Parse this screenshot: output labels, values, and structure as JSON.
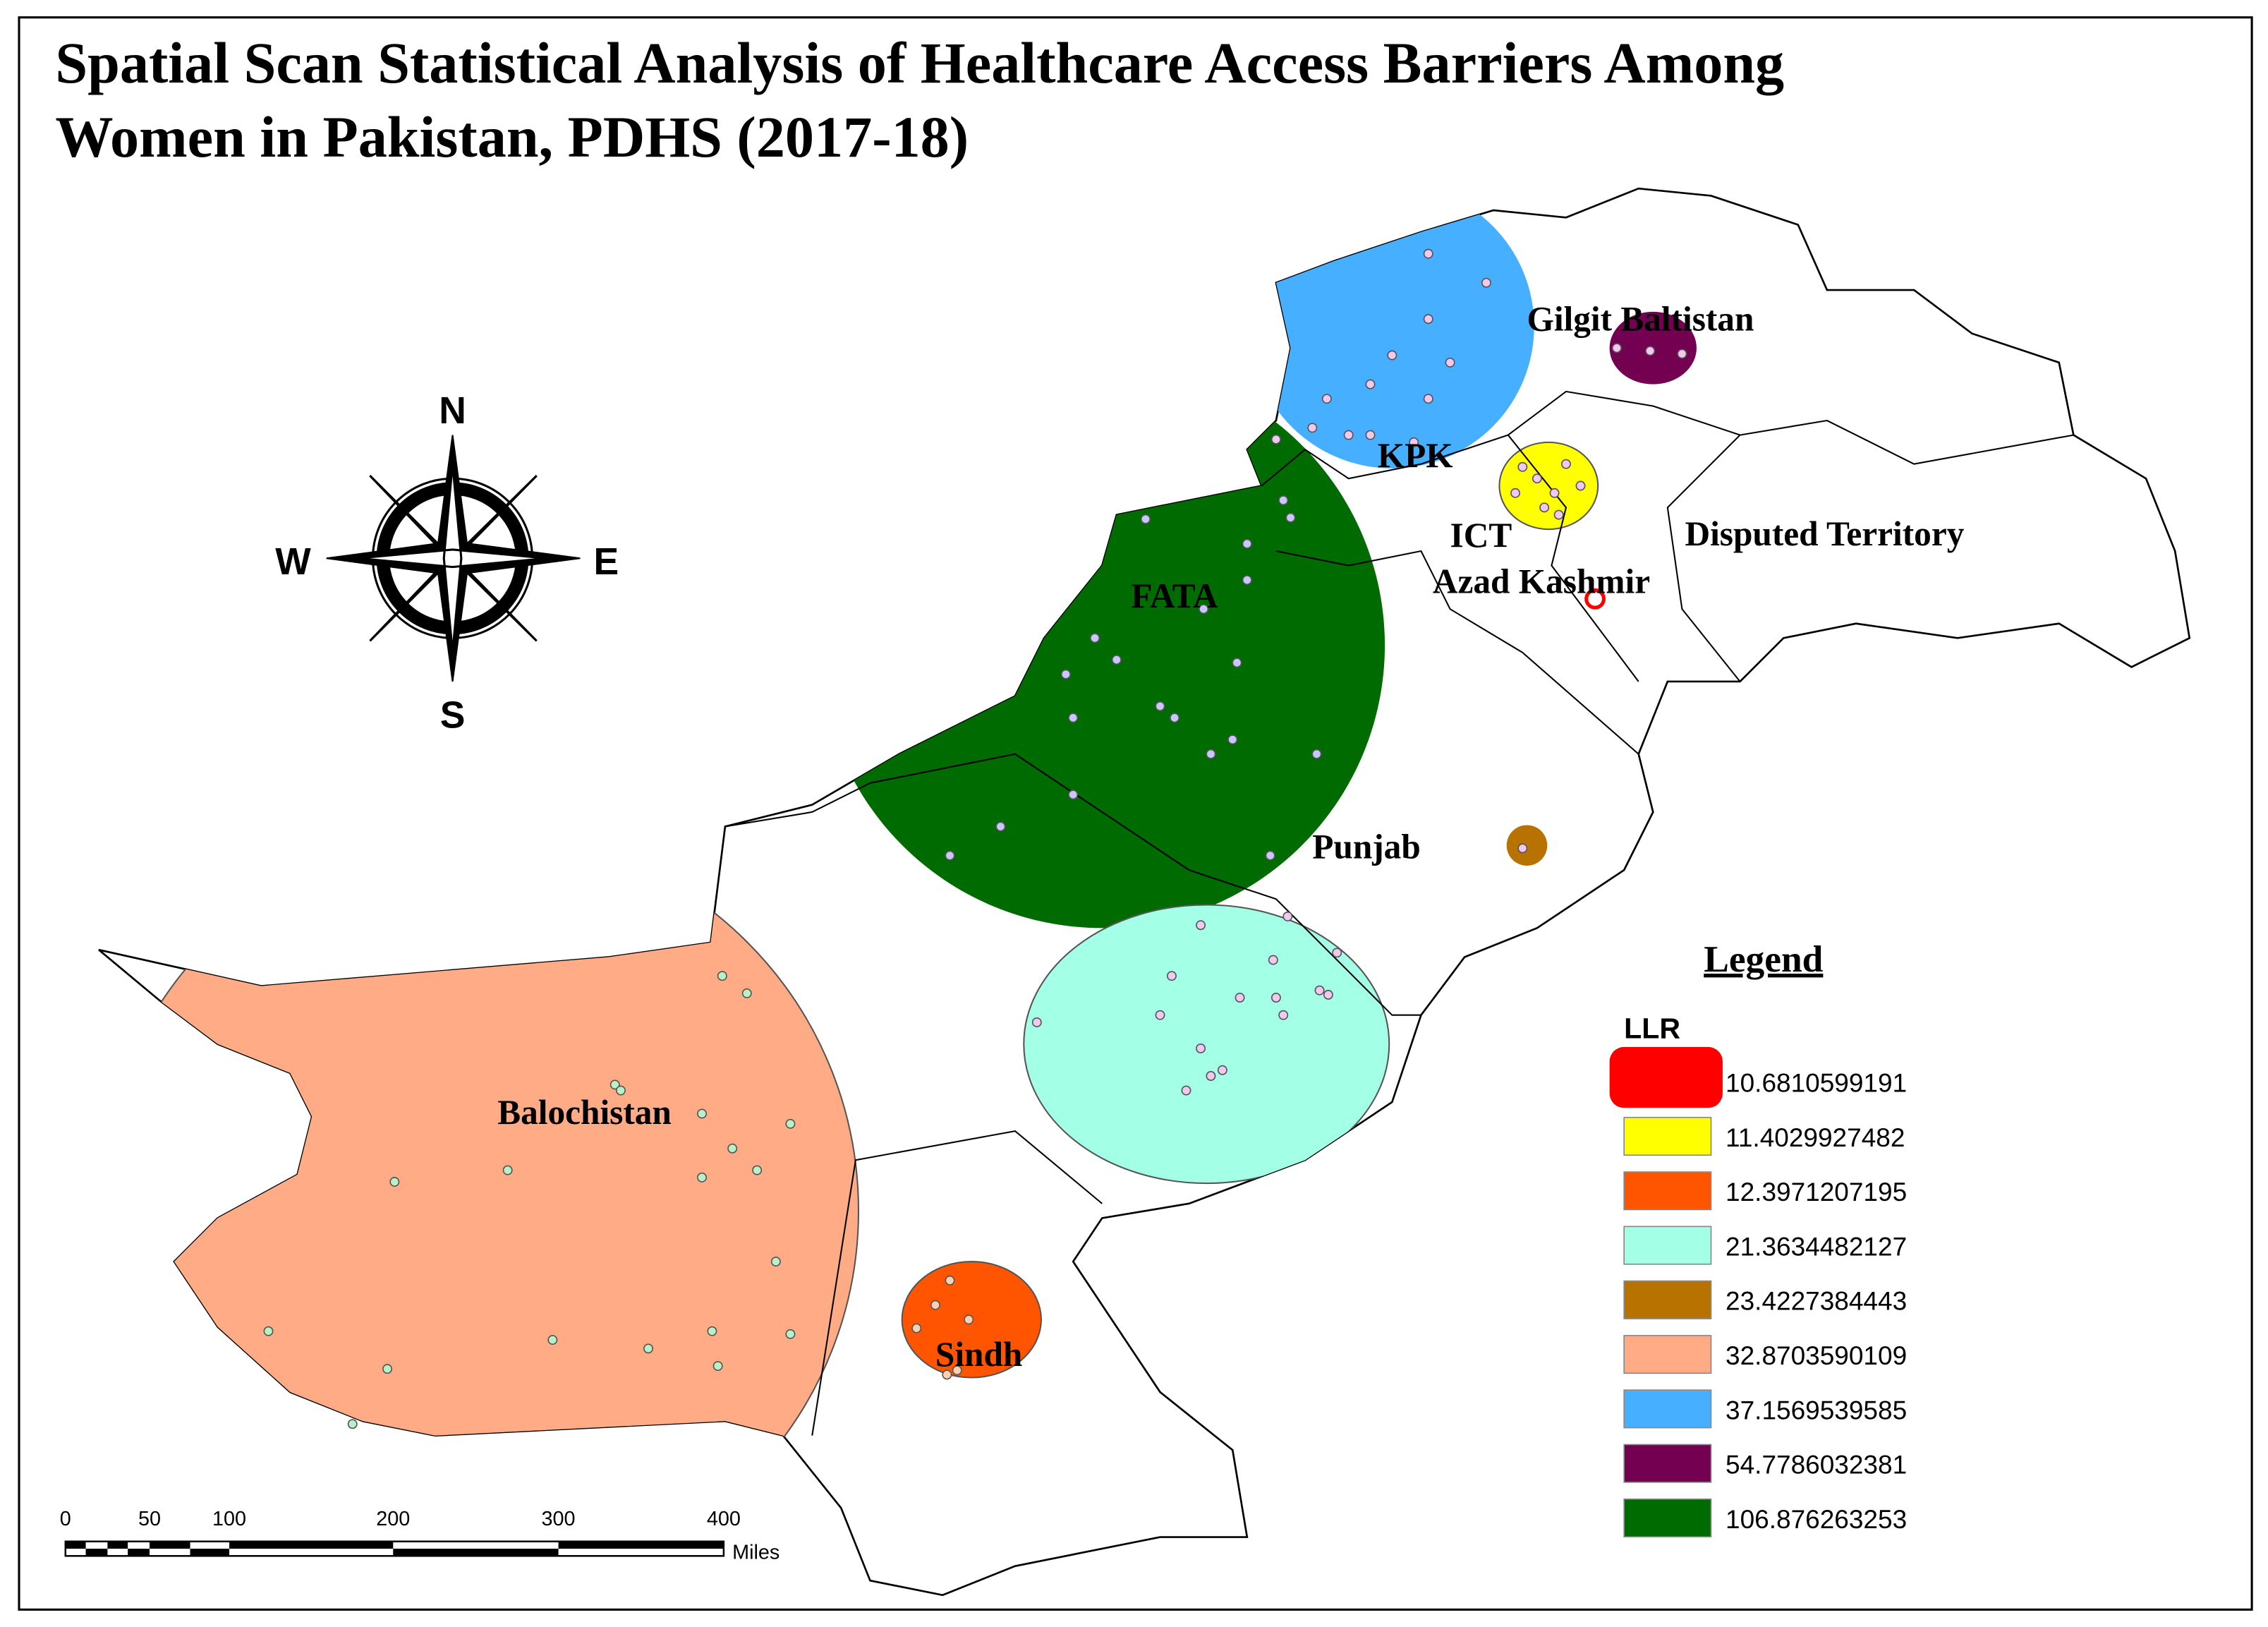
{
  "title": {
    "line1": "Spatial Scan Statistical Analysis of Healthcare Access Barriers Among",
    "line2": "Women in Pakistan, PDHS (2017-18)"
  },
  "compass": {
    "north": "N",
    "south": "S",
    "east": "E",
    "west": "W"
  },
  "regions": [
    "Gilgit Baltistan",
    "KPK",
    "ICT",
    "Disputed Territory",
    "Azad Kashmir",
    "FATA",
    "Punjab",
    "Balochistan",
    "Sindh"
  ],
  "legend": {
    "title": "Legend",
    "subtitle": "LLR",
    "items": [
      {
        "label": "10.6810599191",
        "color": "#ff0000"
      },
      {
        "label": "11.4029927482",
        "color": "#ffff00"
      },
      {
        "label": "12.3971207195",
        "color": "#ff5500"
      },
      {
        "label": "21.3634482127",
        "color": "#a3ffe6"
      },
      {
        "label": "23.4227384443",
        "color": "#b87200"
      },
      {
        "label": "32.8703590109",
        "color": "#ffab85"
      },
      {
        "label": "37.1569539585",
        "color": "#47afff"
      },
      {
        "label": "54.7786032381",
        "color": "#730050"
      },
      {
        "label": "106.876263253",
        "color": "#006b00"
      }
    ]
  },
  "scale_bar": {
    "labels": [
      "0",
      "50",
      "100",
      "200",
      "300",
      "400"
    ],
    "unit": "Miles"
  }
}
